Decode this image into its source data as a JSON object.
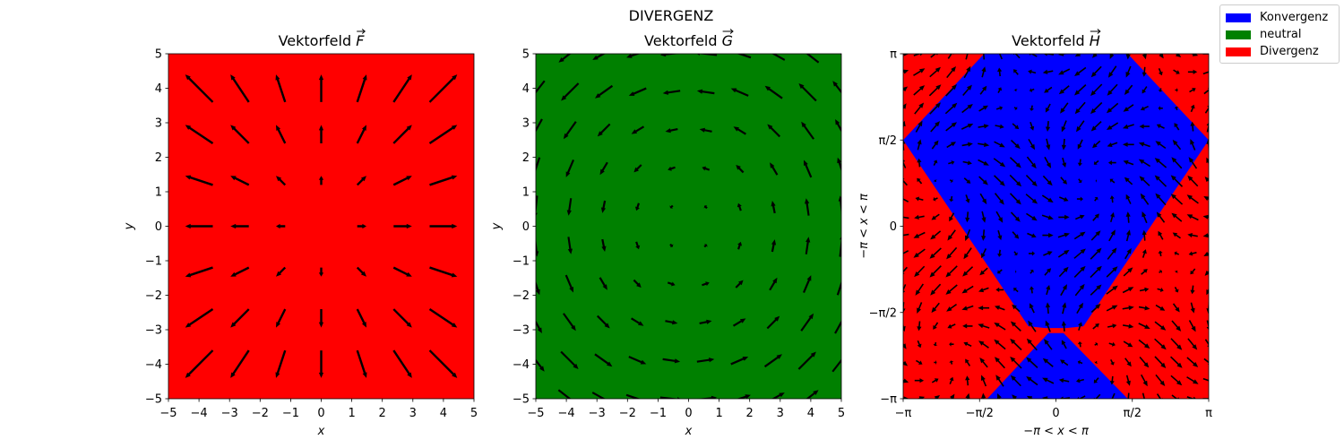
{
  "suptitle": "DIVERGENZ",
  "legend": {
    "items": [
      {
        "label": "Konvergenz",
        "color": "#0000ff"
      },
      {
        "label": "neutral",
        "color": "#008000"
      },
      {
        "label": "Divergenz",
        "color": "#ff0000"
      }
    ]
  },
  "chart_data": [
    {
      "type": "quiver",
      "title": "Vektorfeld F⃗",
      "title_base": "Vektorfeld ",
      "title_vec": "F",
      "xlabel": "x",
      "ylabel": "y",
      "xlim": [
        -5,
        5
      ],
      "ylim": [
        -5,
        5
      ],
      "xticks": [
        "−5",
        "−4",
        "−3",
        "−2",
        "−1",
        "0",
        "1",
        "2",
        "3",
        "4",
        "5"
      ],
      "yticks": [
        "−5",
        "−4",
        "−3",
        "−2",
        "−1",
        "0",
        "1",
        "2",
        "3",
        "4",
        "5"
      ],
      "background_color": "#ff0000",
      "region": "Divergenz",
      "field": "F(x, y) = (x, y)",
      "grid_points": [
        -4,
        -2.67,
        -1.33,
        0,
        1.33,
        2.67,
        4
      ]
    },
    {
      "type": "quiver",
      "title": "Vektorfeld G⃗",
      "title_base": "Vektorfeld ",
      "title_vec": "G",
      "xlabel": "x",
      "ylabel": "y",
      "xlim": [
        -5,
        5
      ],
      "ylim": [
        -5,
        5
      ],
      "xticks": [
        "−5",
        "−4",
        "−3",
        "−2",
        "−1",
        "0",
        "1",
        "2",
        "3",
        "4",
        "5"
      ],
      "yticks": [
        "−5",
        "−4",
        "−3",
        "−2",
        "−1",
        "0",
        "1",
        "2",
        "3",
        "4",
        "5"
      ],
      "background_color": "#008000",
      "region": "neutral",
      "field": "G(x, y) = (−y, x) (rotational)",
      "grid_points": [
        -5,
        -3.89,
        -2.78,
        -1.67,
        -0.56,
        0.56,
        1.67,
        2.78,
        3.89,
        5
      ]
    },
    {
      "type": "quiver",
      "title": "Vektorfeld H⃗",
      "title_base": "Vektorfeld ",
      "title_vec": "H",
      "xlabel": "−π < x < π",
      "ylabel": "−π < x < π",
      "xlim": [
        -3.1416,
        3.1416
      ],
      "ylim": [
        -3.1416,
        3.1416
      ],
      "xticks": [
        "−π",
        "−π/2",
        "0",
        "π/2",
        "π"
      ],
      "yticks": [
        "−π",
        "−π/2",
        "0",
        "π/2",
        "π"
      ],
      "regions": [
        "Konvergenz",
        "Divergenz"
      ],
      "field": "H(x, y) = (cos(x+y), sin(x−y))",
      "grid_points_count": 20
    }
  ]
}
